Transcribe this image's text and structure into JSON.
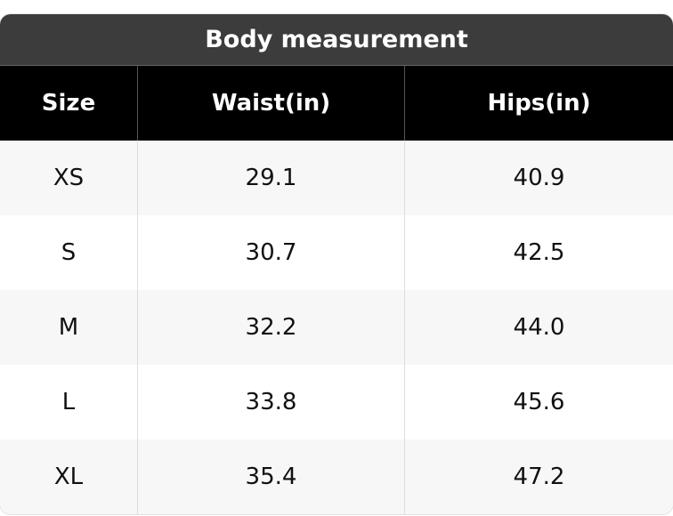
{
  "header": {
    "title": "Body measurement"
  },
  "table": {
    "columns": [
      "Size",
      "Waist(in)",
      "Hips(in)"
    ],
    "rows": [
      [
        "XS",
        "29.1",
        "40.9"
      ],
      [
        "S",
        "30.7",
        "42.5"
      ],
      [
        "M",
        "32.2",
        "44.0"
      ],
      [
        "L",
        "33.8",
        "45.6"
      ],
      [
        "XL",
        "35.4",
        "47.2"
      ]
    ]
  }
}
